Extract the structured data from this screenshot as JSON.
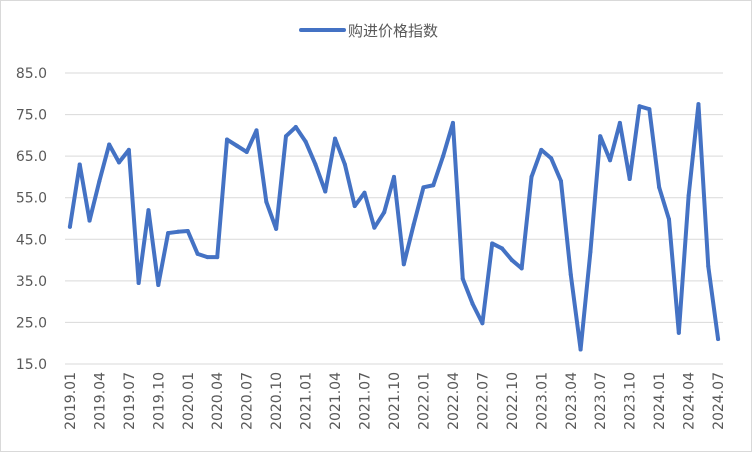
{
  "chart_data": {
    "type": "line",
    "title": "",
    "xlabel": "",
    "ylabel": "",
    "ylim": [
      15,
      85
    ],
    "yticks": [
      "15.0",
      "25.0",
      "35.0",
      "45.0",
      "55.0",
      "65.0",
      "75.0",
      "85.0"
    ],
    "grid": "horizontal",
    "legend_position": "top-center",
    "x_tick_labels": [
      "2019.01",
      "2019.04",
      "2019.07",
      "2019.10",
      "2020.01",
      "2020.04",
      "2020.07",
      "2020.10",
      "2021.01",
      "2021.04",
      "2021.07",
      "2021.10",
      "2022.01",
      "2022.04",
      "2022.07",
      "2022.10",
      "2023.01",
      "2023.04",
      "2023.07",
      "2023.10",
      "2024.01",
      "2024.04",
      "2024.07"
    ],
    "x": [
      "2019.01",
      "2019.02",
      "2019.03",
      "2019.04",
      "2019.05",
      "2019.06",
      "2019.07",
      "2019.08",
      "2019.09",
      "2019.10",
      "2019.11",
      "2019.12",
      "2020.01",
      "2020.02",
      "2020.03",
      "2020.04",
      "2020.05",
      "2020.06",
      "2020.07",
      "2020.08",
      "2020.09",
      "2020.10",
      "2020.11",
      "2020.12",
      "2021.01",
      "2021.02",
      "2021.03",
      "2021.04",
      "2021.05",
      "2021.06",
      "2021.07",
      "2021.08",
      "2021.09",
      "2021.10",
      "2021.11",
      "2021.12",
      "2022.01",
      "2022.02",
      "2022.03",
      "2022.04",
      "2022.05",
      "2022.06",
      "2022.07",
      "2022.08",
      "2022.09",
      "2022.10",
      "2022.11",
      "2022.12",
      "2023.01",
      "2023.02",
      "2023.03",
      "2023.04",
      "2023.05",
      "2023.06",
      "2023.07",
      "2023.08",
      "2023.09",
      "2023.10",
      "2023.11",
      "2023.12",
      "2024.01",
      "2024.02",
      "2024.03",
      "2024.04",
      "2024.05",
      "2024.06",
      "2024.07"
    ],
    "series": [
      {
        "name": "购进价格指数",
        "color": "#4472C4",
        "values": [
          48.0,
          63.0,
          49.5,
          59.0,
          67.8,
          63.5,
          66.5,
          34.5,
          52.0,
          34.0,
          46.5,
          46.8,
          47.0,
          41.5,
          40.7,
          40.7,
          69.0,
          67.5,
          66.0,
          71.2,
          54.0,
          47.5,
          69.8,
          72.0,
          68.5,
          63.0,
          56.5,
          69.2,
          63.0,
          53.0,
          56.2,
          47.8,
          51.5,
          60.0,
          39.0,
          48.5,
          57.5,
          58.0,
          65.0,
          73.0,
          35.5,
          29.5,
          24.8,
          44.0,
          42.8,
          40.0,
          38.0,
          60.0,
          66.5,
          64.5,
          59.0,
          36.5,
          18.5,
          42.0,
          69.8,
          64.0,
          73.0,
          59.5,
          77.0,
          76.3,
          57.5,
          49.8,
          22.5,
          55.5,
          77.5,
          38.5,
          21.0
        ]
      }
    ]
  }
}
